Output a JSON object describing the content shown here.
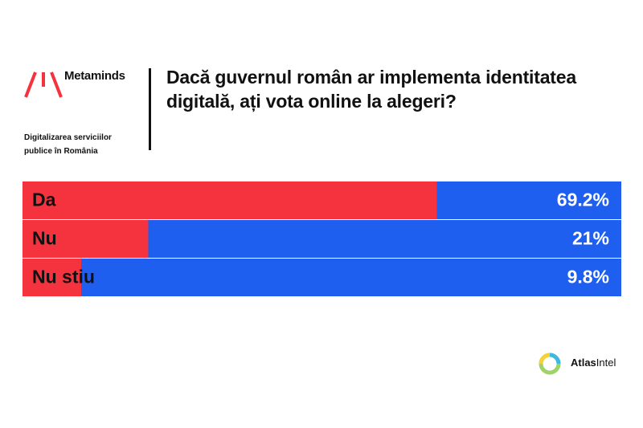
{
  "header": {
    "brand": "Metaminds",
    "subtitle": "Digitalizarea serviciilor publice în România"
  },
  "footer": {
    "brand_bold": "Atlas",
    "brand_light": "Intel"
  },
  "chart_data": {
    "type": "bar",
    "orientation": "horizontal",
    "title": "Dacă guvernul român ar implementa identitatea digitală, ați vota online la alegeri?",
    "categories": [
      "Da",
      "Nu",
      "Nu stiu"
    ],
    "values": [
      69.2,
      21,
      9.8
    ],
    "value_labels": [
      "69.2%",
      "21%",
      "9.8%"
    ],
    "xlim": [
      0,
      100
    ],
    "color": "#f5333f",
    "track_color": "#1f5ff0"
  }
}
